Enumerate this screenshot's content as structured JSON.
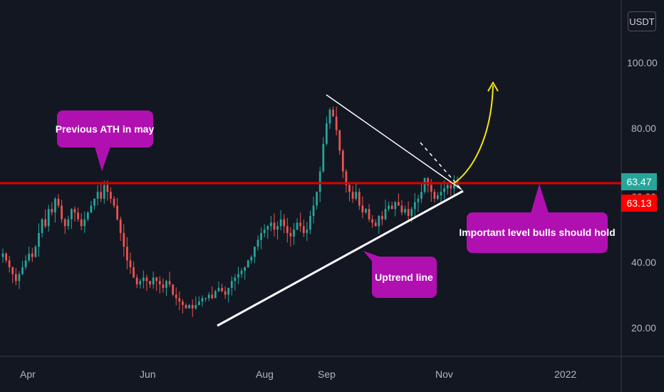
{
  "currency": "USDT",
  "colors": {
    "background": "#131722",
    "up": "#26a69a",
    "down": "#ef5350",
    "resistance": "#e00000",
    "callout": "#b010b0",
    "projection": "#f5e50a",
    "trendline": "#ffffff"
  },
  "annotations": {
    "ath": "Previous ATH in may",
    "level": "Important level bulls should hold",
    "uptrend": "Uptrend line"
  },
  "price_labels": {
    "last": "63.47",
    "level": "63.13"
  },
  "chart_data": {
    "type": "candlestick",
    "x_ticks": [
      "Apr",
      "Jun",
      "Aug",
      "Sep",
      "Nov",
      "2022"
    ],
    "y_ticks": [
      "20.00",
      "40.00",
      "60.00",
      "80.00",
      "100.00"
    ],
    "ylim": [
      12,
      116
    ],
    "horizontal_level": 63.13,
    "last_price": 63.47,
    "closes": [
      42,
      40,
      38,
      36,
      34,
      36,
      38,
      40,
      42,
      41,
      44,
      48,
      52,
      50,
      55,
      54,
      58,
      56,
      52,
      50,
      52,
      55,
      54,
      52,
      50,
      52,
      54,
      56,
      58,
      60,
      58,
      62,
      60,
      58,
      56,
      52,
      48,
      44,
      40,
      38,
      35,
      33,
      34,
      35,
      34,
      33,
      35,
      34,
      33,
      32,
      34,
      33,
      30,
      29,
      28,
      27,
      26,
      27,
      26,
      27,
      28,
      29,
      29,
      30,
      29,
      31,
      32,
      31,
      30,
      32,
      34,
      35,
      36,
      37,
      38,
      40,
      41,
      44,
      46,
      48,
      49,
      50,
      51,
      49,
      50,
      52,
      50,
      48,
      47,
      49,
      51,
      50,
      48,
      49,
      53,
      56,
      60,
      66,
      74,
      80,
      84,
      82,
      78,
      72,
      66,
      62,
      60,
      58,
      60,
      56,
      54,
      55,
      52,
      51,
      50,
      53,
      52,
      55,
      56,
      55,
      57,
      56,
      54,
      55,
      53,
      55,
      57,
      58,
      60,
      64,
      62,
      60,
      58,
      59,
      60,
      61,
      62,
      61,
      62,
      63.47
    ]
  }
}
